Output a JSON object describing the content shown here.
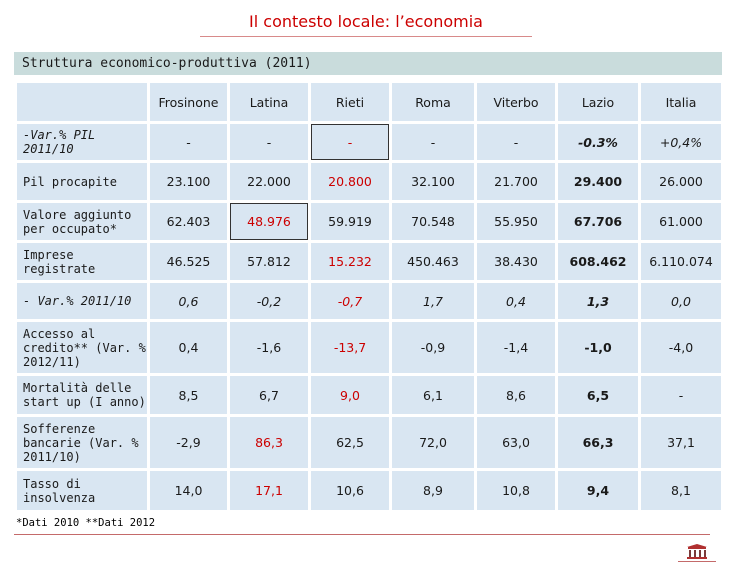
{
  "title": "Il contesto locale: l’economia",
  "section_header": "Struttura economico-produttiva (2011)",
  "columns": [
    "Frosinone",
    "Latina",
    "Rieti",
    "Roma",
    "Viterbo",
    "Lazio",
    "Italia"
  ],
  "rows": [
    {
      "label": "-Var.% PIL 2011/10",
      "values": [
        "-",
        "-",
        "-",
        "-",
        "-",
        "-0.3%",
        "+0,4%"
      ]
    },
    {
      "label": "Pil procapite",
      "values": [
        "23.100",
        "22.000",
        "20.800",
        "32.100",
        "21.700",
        "29.400",
        "26.000"
      ]
    },
    {
      "label": "Valore aggiunto per occupato*",
      "values": [
        "62.403",
        "48.976",
        "59.919",
        "70.548",
        "55.950",
        "67.706",
        "61.000"
      ]
    },
    {
      "label": "Imprese registrate",
      "values": [
        "46.525",
        "57.812",
        "15.232",
        "450.463",
        "38.430",
        "608.462",
        "6.110.074"
      ]
    },
    {
      "label": "- Var.% 2011/10",
      "values": [
        "0,6",
        "-0,2",
        "-0,7",
        "1,7",
        "0,4",
        "1,3",
        "0,0"
      ]
    },
    {
      "label": "Accesso al credito** (Var. % 2012/11)",
      "values": [
        "0,4",
        "-1,6",
        "-13,7",
        "-0,9",
        "-1,4",
        "-1,0",
        "-4,0"
      ]
    },
    {
      "label": "Mortalità delle start up (I anno)",
      "values": [
        "8,5",
        "6,7",
        "9,0",
        "6,1",
        "8,6",
        "6,5",
        "-"
      ]
    },
    {
      "label": "Sofferenze bancarie (Var. % 2011/10)",
      "values": [
        "-2,9",
        "86,3",
        "62,5",
        "72,0",
        "63,0",
        "66,3",
        "37,1"
      ]
    },
    {
      "label": "Tasso di insolvenza",
      "values": [
        "14,0",
        "17,1",
        "10,6",
        "8,9",
        "10,8",
        "9,4",
        "8,1"
      ]
    }
  ],
  "footnote": "*Dati 2010 **Dati 2012",
  "colors": {
    "title": "#cc0000",
    "header_bg": "#c9dcdc",
    "cell_bg": "#d9e6f2",
    "highlight": "#cc0000"
  }
}
